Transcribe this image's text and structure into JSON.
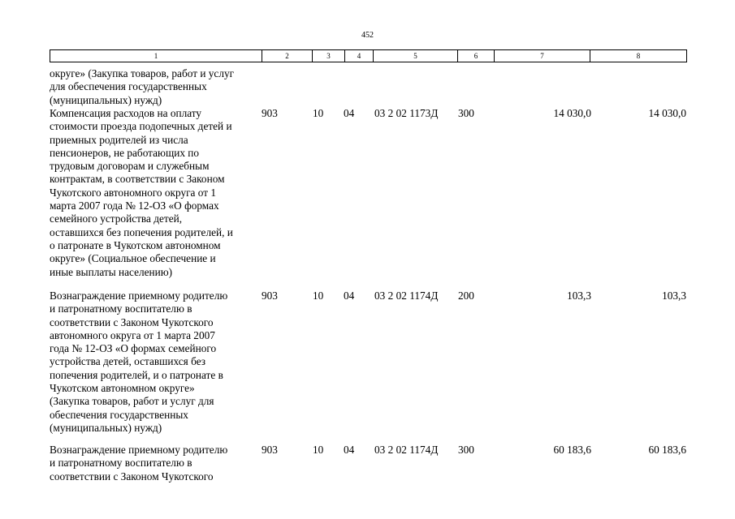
{
  "page_number": "452",
  "header_columns": [
    "1",
    "2",
    "3",
    "4",
    "5",
    "6",
    "7",
    "8"
  ],
  "rows": [
    {
      "lines": [
        "округе» (Закупка товаров, работ и услуг",
        "для обеспечения государственных",
        "(муниципальных) нужд)"
      ],
      "c2": "",
      "c3": "",
      "c4": "",
      "c5": "",
      "c6": "",
      "c7": "",
      "c8": ""
    },
    {
      "lines": [
        "Компенсация расходов на оплату",
        "стоимости проезда подопечных детей и",
        "приемных родителей из числа",
        "пенсионеров, не работающих по",
        "трудовым договорам и служебным",
        "контрактам, в соответствии с Законом",
        "Чукотского автономного округа от 1",
        "марта 2007 года № 12-ОЗ «О формах",
        "семейного устройства детей,",
        "оставшихся без попечения родителей, и",
        "о патронате в Чукотском автономном",
        "округе» (Социальное обеспечение и",
        "иные выплаты населению)"
      ],
      "c2": "903",
      "c3": "10",
      "c4": "04",
      "c5": "03 2 02 1173Д",
      "c6": "300",
      "c7": "14 030,0",
      "c8": "14 030,0"
    },
    {
      "lines": [
        "Вознаграждение приемному родителю",
        "и патронатному воспитателю в",
        "соответствии с Законом Чукотского",
        "автономного округа от 1 марта 2007",
        "года № 12-ОЗ «О формах семейного",
        "устройства детей, оставшихся без",
        "попечения родителей, и о патронате в",
        "Чукотском автономном округе»",
        "(Закупка товаров, работ и услуг для",
        "обеспечения государственных",
        "(муниципальных) нужд)"
      ],
      "c2": "903",
      "c3": "10",
      "c4": "04",
      "c5": "03 2 02 1174Д",
      "c6": "200",
      "c7": "103,3",
      "c8": "103,3"
    },
    {
      "lines": [
        "Вознаграждение приемному родителю",
        "и патронатному воспитателю в",
        "соответствии с Законом Чукотского"
      ],
      "c2": "903",
      "c3": "10",
      "c4": "04",
      "c5": "03 2 02 1174Д",
      "c6": "300",
      "c7": "60 183,6",
      "c8": "60 183,6"
    }
  ]
}
